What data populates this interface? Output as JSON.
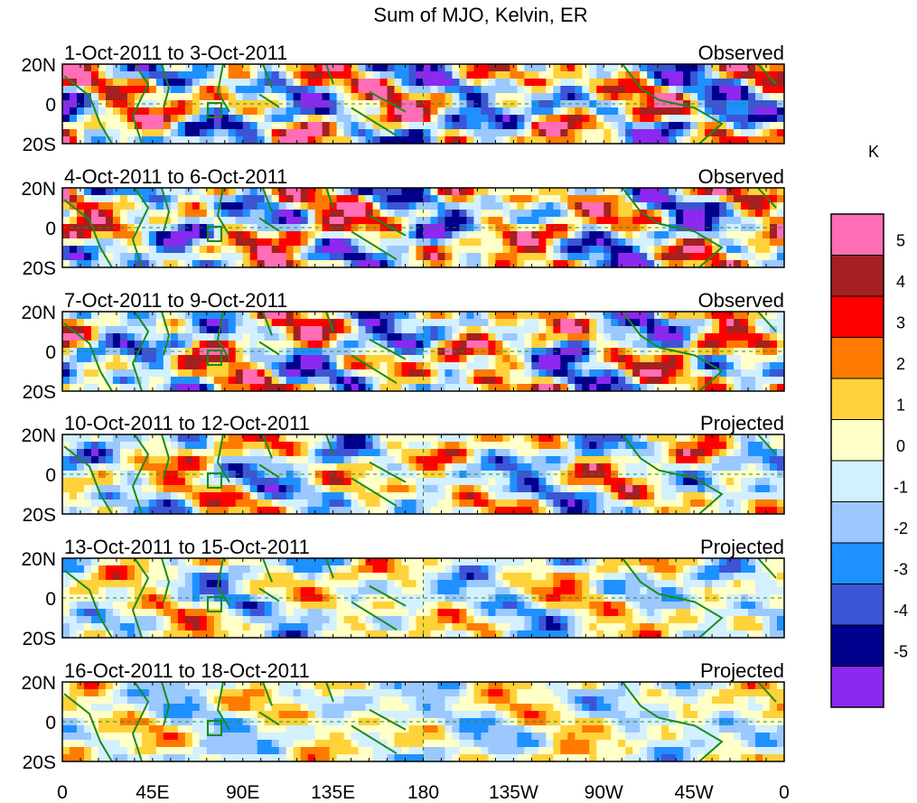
{
  "chart_data": {
    "type": "heatmap",
    "title": "Sum of MJO, Kelvin, ER",
    "x_ticks": [
      "0",
      "45E",
      "90E",
      "135E",
      "180",
      "135W",
      "90W",
      "45W",
      "0"
    ],
    "y_ticks": [
      "20N",
      "0",
      "20S"
    ],
    "panels": [
      {
        "period": "1-Oct-2011 to 3-Oct-2011",
        "type": "Observed"
      },
      {
        "period": "4-Oct-2011 to 6-Oct-2011",
        "type": "Observed"
      },
      {
        "period": "7-Oct-2011 to 9-Oct-2011",
        "type": "Observed"
      },
      {
        "period": "10-Oct-2011 to 12-Oct-2011",
        "type": "Projected"
      },
      {
        "period": "13-Oct-2011 to 15-Oct-2011",
        "type": "Projected"
      },
      {
        "period": "16-Oct-2011 to 18-Oct-2011",
        "type": "Projected"
      }
    ],
    "colorbar": {
      "unit": "K",
      "labels": [
        "5",
        "4",
        "3",
        "2",
        "1",
        "0",
        "-1",
        "-2",
        "-3",
        "-4",
        "-5"
      ],
      "levels": [
        5,
        4,
        3,
        2,
        1,
        0,
        -1,
        -2,
        -3,
        -4,
        -5
      ],
      "colors": [
        "#ff6eb4",
        "#a52020",
        "#ff0000",
        "#ff7a00",
        "#ffd23a",
        "#ffffc8",
        "#d2f0ff",
        "#9ac8ff",
        "#1e90ff",
        "#3c55d6",
        "#00008c",
        "#8c28f0"
      ]
    }
  }
}
